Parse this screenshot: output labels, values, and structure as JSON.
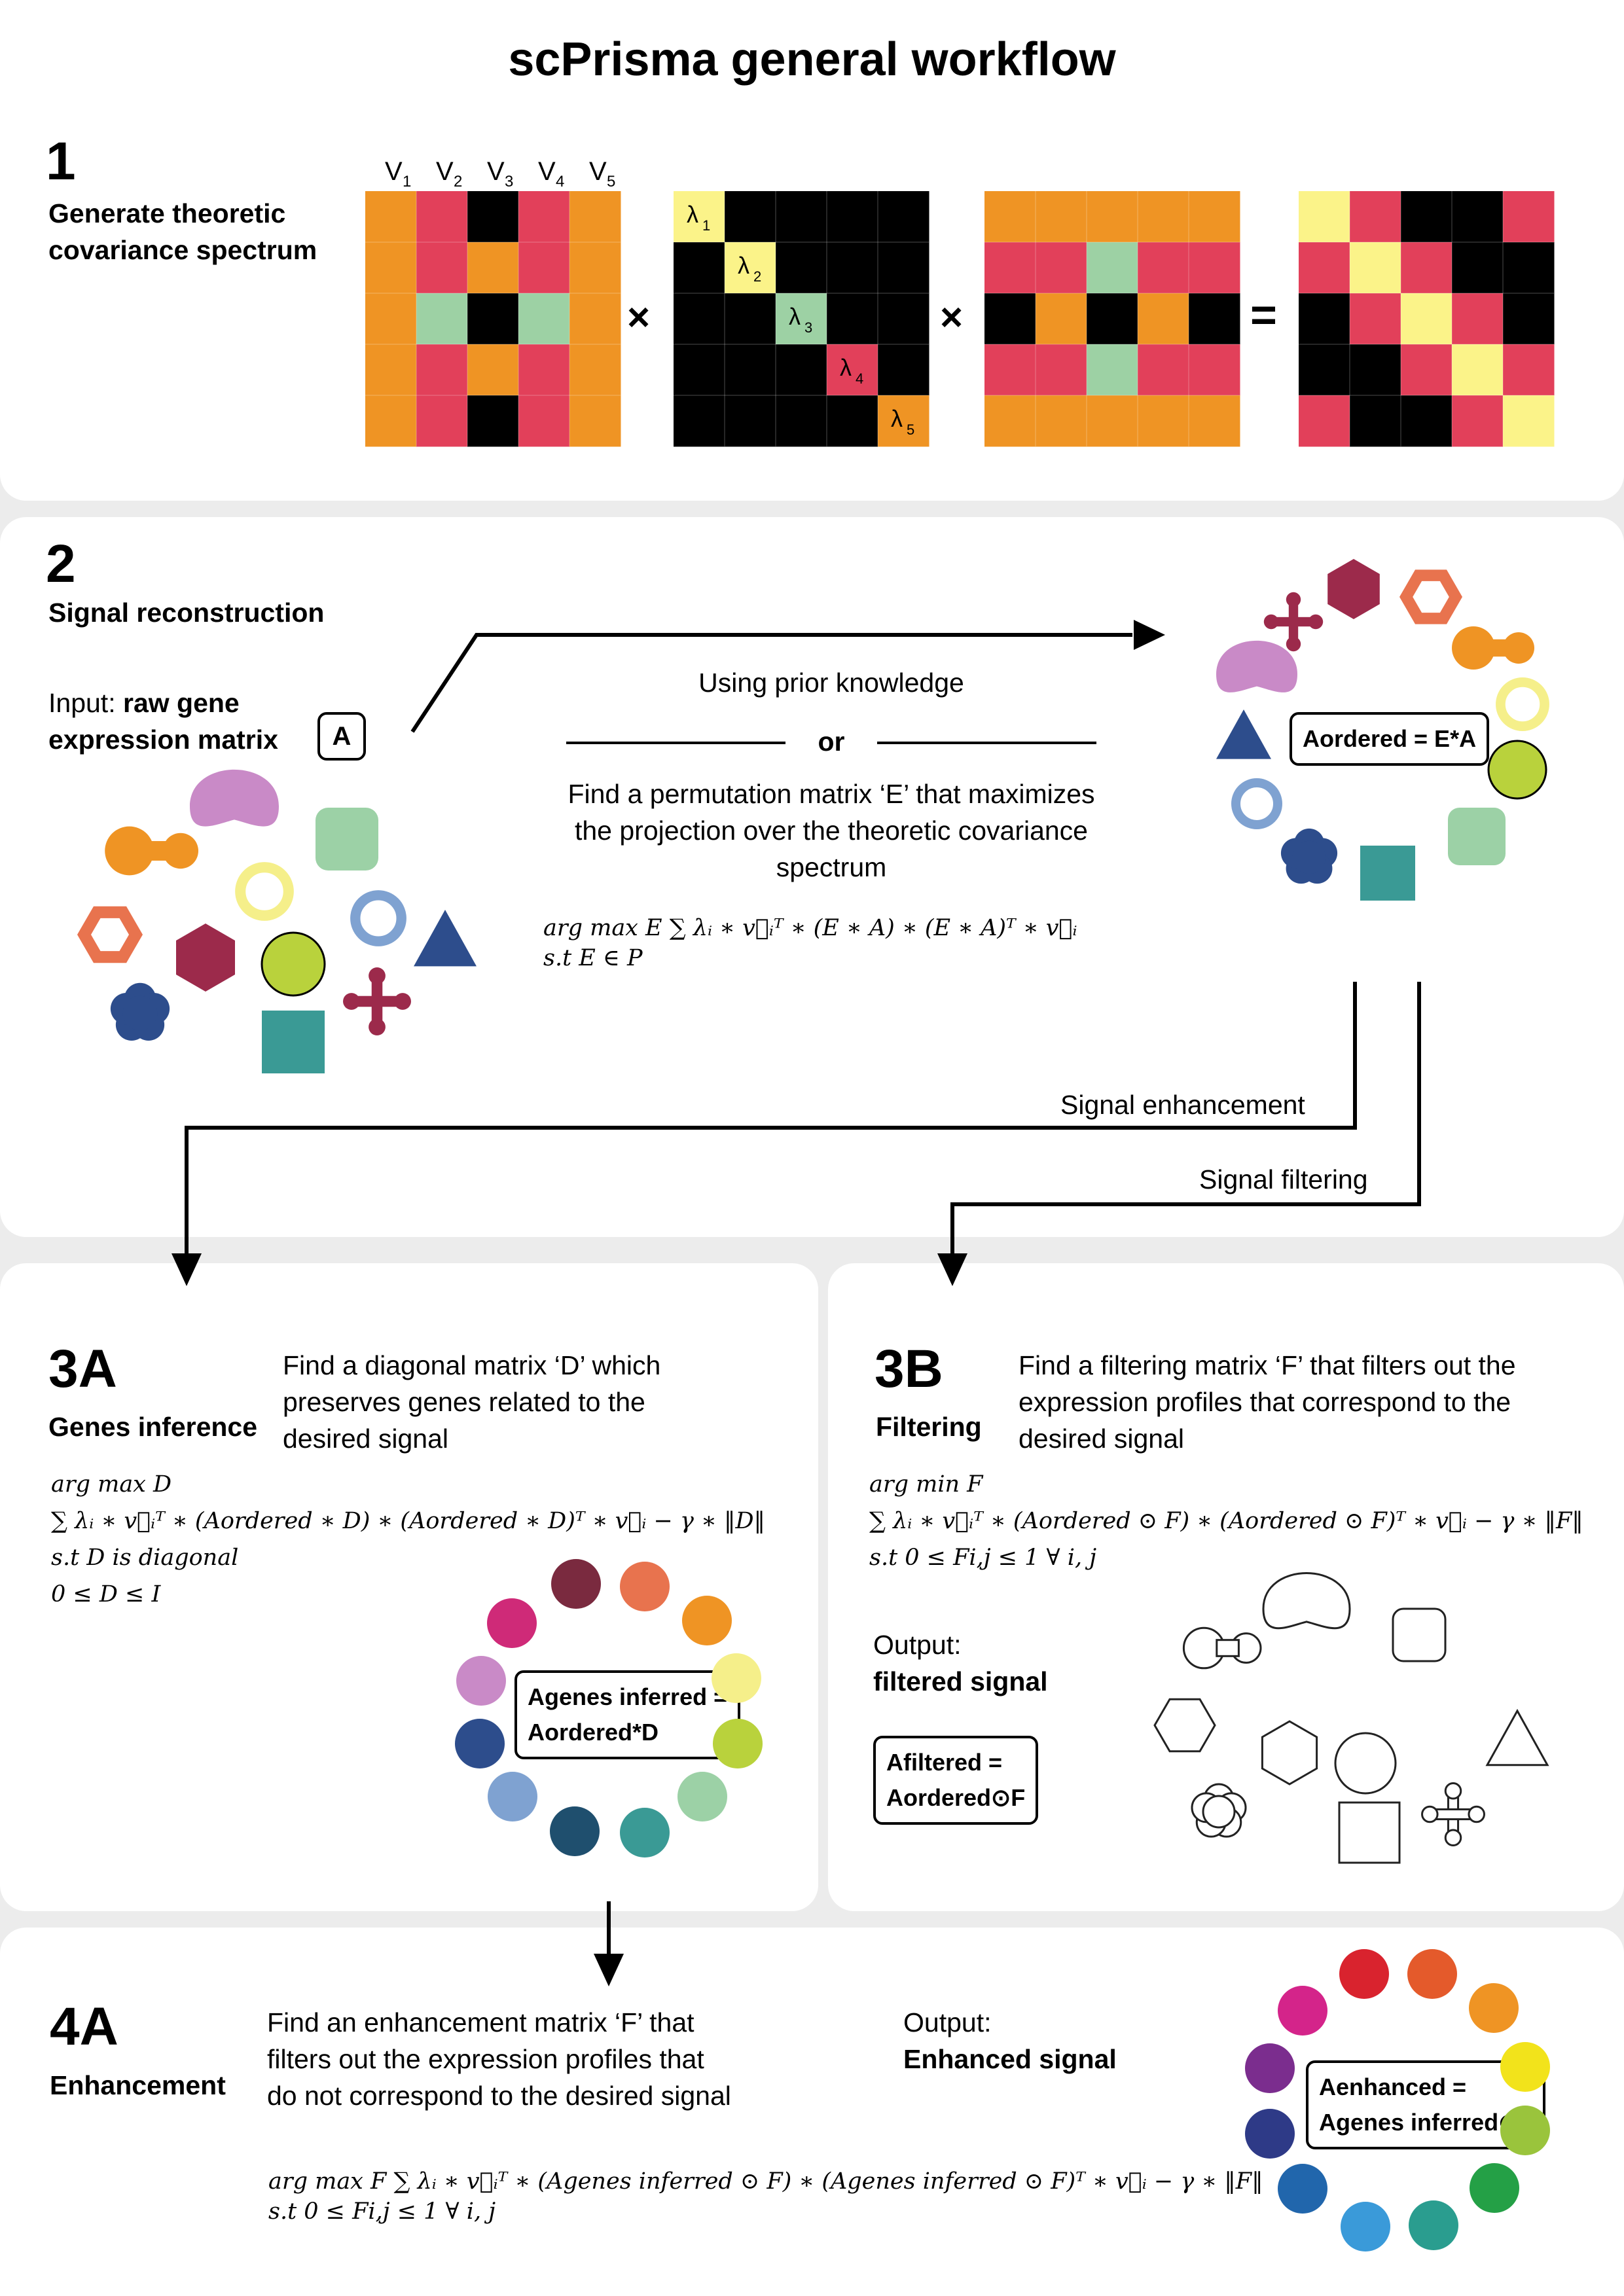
{
  "title": "scPrisma general workflow",
  "colors": {
    "orange": "#ef9424",
    "pink": "#e2405a",
    "green": "#9dd1a4",
    "yellow": "#fbf389",
    "black": "#000000"
  },
  "step1": {
    "number": "1",
    "label": "Generate theoretic covariance spectrum",
    "v_labels": [
      "V1",
      "V2",
      "V3",
      "V4",
      "V5"
    ],
    "lambda_labels": [
      "λ1",
      "λ2",
      "λ3",
      "λ4",
      "λ5"
    ],
    "ops": {
      "times1": "×",
      "times2": "×",
      "equals": "="
    }
  },
  "step2": {
    "number": "2",
    "label": "Signal reconstruction",
    "input_prefix": "Input: ",
    "input_bold": "raw gene expression matrix",
    "input_badge": "A",
    "prior": "Using prior knowledge",
    "or": "or",
    "perm_text": "Find a permutation matrix ‘E’ that maximizes the projection over the theoretic covariance spectrum",
    "eq_line1": "arg max E   ∑ λᵢ ∗ v⃗ᵢᵀ ∗ (E ∗ A) ∗ (E ∗ A)ᵀ ∗ v⃗ᵢ",
    "eq_line2": "s.t    E ∈ P",
    "ordered_box": "Aordered = E*A",
    "enhance_label": "Signal enhancement",
    "filter_label": "Signal filtering"
  },
  "step3a": {
    "number": "3A",
    "label": "Genes inference",
    "desc": "Find a diagonal matrix ‘D’ which preserves genes related to the desired signal",
    "eq1": "arg max D",
    "eq2": "∑ λᵢ ∗ v⃗ᵢᵀ ∗ (Aordered ∗ D) ∗ (Aordered ∗ D)ᵀ ∗ v⃗ᵢ − γ ∗ ‖D‖",
    "eq3": "s.t    D   is   diagonal",
    "eq4": "0 ≤ D ≤ I",
    "box_line1": "Agenes inferred =",
    "box_line2": "Aordered*D"
  },
  "step3b": {
    "number": "3B",
    "label": "Filtering",
    "desc": "Find a filtering matrix ‘F’ that filters out the expression profiles that correspond to the desired signal",
    "eq1": "arg min F",
    "eq2": "∑ λᵢ ∗ v⃗ᵢᵀ ∗ (Aordered ⊙ F) ∗ (Aordered ⊙ F)ᵀ ∗ v⃗ᵢ − γ ∗ ‖F‖",
    "eq3": "s.t    0 ≤ Fi,j ≤ 1    ∀    i, j",
    "output_label": "Output:",
    "output_bold": "filtered signal",
    "box_line1": "Afiltered =",
    "box_line2": "Aordered⊙F"
  },
  "step4a": {
    "number": "4A",
    "label": "Enhancement",
    "desc": "Find an enhancement matrix ‘F’ that filters out the expression profiles that do not correspond to the desired signal",
    "eq1": "arg max F   ∑ λᵢ ∗ v⃗ᵢᵀ ∗ (Agenes inferred ⊙ F) ∗ (Agenes inferred ⊙ F)ᵀ ∗ v⃗ᵢ − γ ∗ ‖F‖",
    "eq2": "s.t    0 ≤ Fi,j ≤ 1    ∀    i, j",
    "output_label": "Output:",
    "output_bold": "Enhanced signal",
    "box_line1": "Aenhanced =",
    "box_line2": "Agenes inferred⊙F",
    "circle_colors": [
      "#d9232e",
      "#e45a2b",
      "#ef9424",
      "#f2e31b",
      "#9ac43c",
      "#24a046",
      "#2a9d8f",
      "#3a9ad9",
      "#2166ac",
      "#2e3a87",
      "#7b2d8e",
      "#d4248a"
    ]
  }
}
